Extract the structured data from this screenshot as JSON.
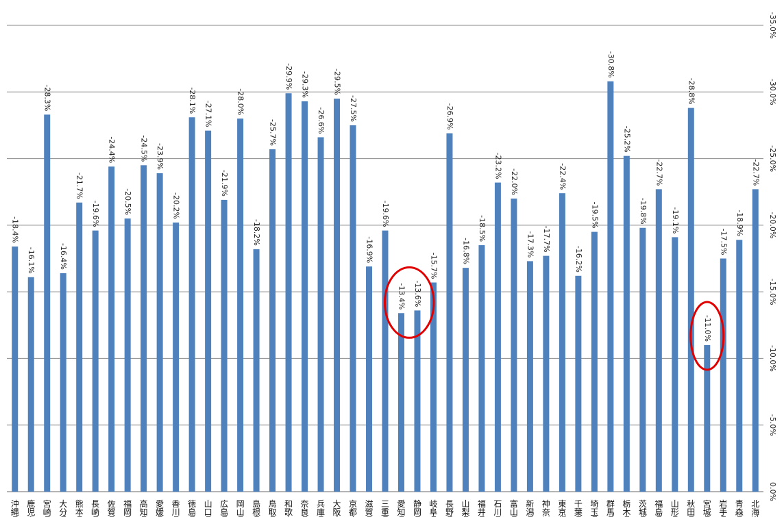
{
  "chart_data": {
    "type": "bar",
    "categories": [
      "沖縄県",
      "鹿児島県",
      "宮崎県",
      "大分県",
      "熊本県",
      "長崎県",
      "佐賀県",
      "福岡県",
      "高知県",
      "愛媛県",
      "香川県",
      "徳島県",
      "山口県",
      "広島県",
      "岡山県",
      "島根県",
      "鳥取県",
      "和歌山県",
      "奈良県",
      "兵庫県",
      "大阪府",
      "京都府",
      "滋賀県",
      "三重県",
      "愛知県",
      "静岡県",
      "岐阜県",
      "長野県",
      "山梨県",
      "福井県",
      "石川県",
      "富山県",
      "新潟県",
      "神奈川県",
      "東京都",
      "千葉県",
      "埼玉県",
      "群馬県",
      "栃木県",
      "茨城県",
      "福島県",
      "山形県",
      "秋田県",
      "宮城県",
      "岩手県",
      "青森県",
      "北海道"
    ],
    "values": [
      -18.4,
      -16.1,
      -28.3,
      -16.4,
      -21.7,
      -19.6,
      -24.4,
      -20.5,
      -24.5,
      -23.9,
      -20.2,
      -28.1,
      -27.1,
      -21.9,
      -28.0,
      -18.2,
      -25.7,
      -29.9,
      -29.3,
      -26.6,
      -29.5,
      -27.5,
      -16.9,
      -19.6,
      -13.4,
      -13.6,
      -15.7,
      -26.9,
      -16.8,
      -18.5,
      -23.2,
      -22.0,
      -17.3,
      -17.7,
      -22.4,
      -16.2,
      -19.5,
      -30.8,
      -25.2,
      -19.8,
      -22.7,
      -19.1,
      -28.8,
      -11.0,
      -17.5,
      -18.9,
      -22.7
    ],
    "value_labels": [
      "-18.4%",
      "-16.1%",
      "-28.3%",
      "-16.4%",
      "-21.7%",
      "-19.6%",
      "-24.4%",
      "-20.5%",
      "-24.5%",
      "-23.9%",
      "-20.2%",
      "-28.1%",
      "-27.1%",
      "-21.9%",
      "-28.0%",
      "-18.2%",
      "-25.7%",
      "-29.9%",
      "-29.3%",
      "-26.6%",
      "-29.5%",
      "-27.5%",
      "-16.9%",
      "-19.6%",
      "-13.4%",
      "-13.6%",
      "-15.7%",
      "-26.9%",
      "-16.8%",
      "-18.5%",
      "-23.2%",
      "-22.0%",
      "-17.3%",
      "-17.7%",
      "-22.4%",
      "-16.2%",
      "-19.5%",
      "-30.8%",
      "-25.2%",
      "-19.8%",
      "-22.7%",
      "-19.1%",
      "-28.8%",
      "-11.0%",
      "-17.5%",
      "-18.9%",
      "-22.7%"
    ],
    "yticks": [
      "0.0%",
      "-5.0%",
      "-10.0%",
      "-15.0%",
      "-20.0%",
      "-25.0%",
      "-30.0%",
      "-35.0%"
    ],
    "ylim": [
      0,
      -35
    ],
    "axis_side": "right",
    "grid": true,
    "bar_color": "#4f81bd",
    "highlight_color": "#e00000",
    "highlighted_categories": [
      [
        "愛知県",
        "静岡県"
      ],
      [
        "宮城県"
      ]
    ],
    "title": "",
    "xlabel": "",
    "ylabel": ""
  }
}
